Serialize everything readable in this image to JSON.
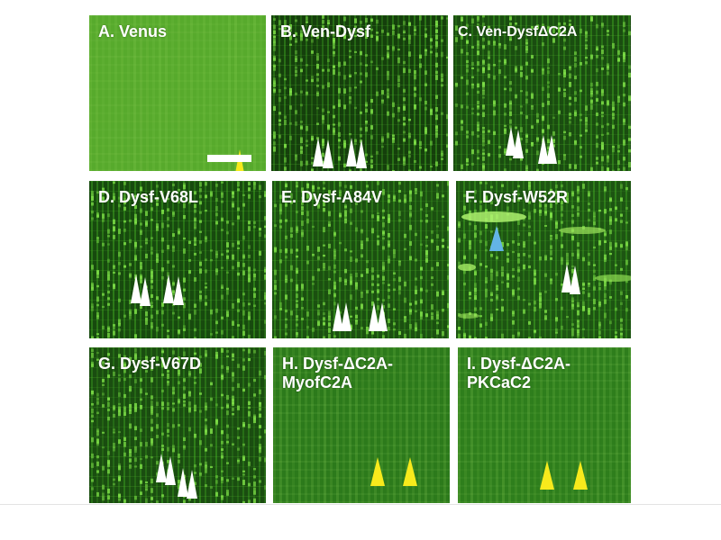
{
  "colors": {
    "arrow_white": "#ffffff",
    "arrow_yellow": "#f7ea1c",
    "arrow_blue": "#63b4e6",
    "label_text": "#ffffff"
  },
  "panels": [
    {
      "id": "A",
      "label": "A. Venus",
      "bg": "#57aa2c",
      "texture": "diffuse",
      "arrow_color": "yellow"
    },
    {
      "id": "B",
      "label": "B. Ven-Dysf",
      "bg": "#153f0c",
      "texture": "striated",
      "arrow_color": "white"
    },
    {
      "id": "C",
      "label": "C. Ven-DysfΔC2A",
      "bg": "#1a4d10",
      "texture": "striated",
      "arrow_color": "white"
    },
    {
      "id": "D",
      "label": "D. Dysf-V68L",
      "bg": "#174a0e",
      "texture": "striated",
      "arrow_color": "white"
    },
    {
      "id": "E",
      "label": "E. Dysf-A84V",
      "bg": "#1b5010",
      "texture": "striated",
      "arrow_color": "white"
    },
    {
      "id": "F",
      "label": "F. Dysf-W52R",
      "bg": "#1d5512",
      "texture": "aggregates",
      "arrow_color": "white"
    },
    {
      "id": "G",
      "label": "G. Dysf-V67D",
      "bg": "#1a4d10",
      "texture": "striated",
      "arrow_color": "white"
    },
    {
      "id": "H",
      "label": "H. Dysf-ΔC2A-\nMyofC2A",
      "bg": "#2c7a1b",
      "texture": "diffuse",
      "arrow_color": "yellow"
    },
    {
      "id": "I",
      "label": "I. Dysf-ΔC2A-\nPKCaC2",
      "bg": "#2e7e1c",
      "texture": "diffuse",
      "arrow_color": "yellow"
    }
  ]
}
